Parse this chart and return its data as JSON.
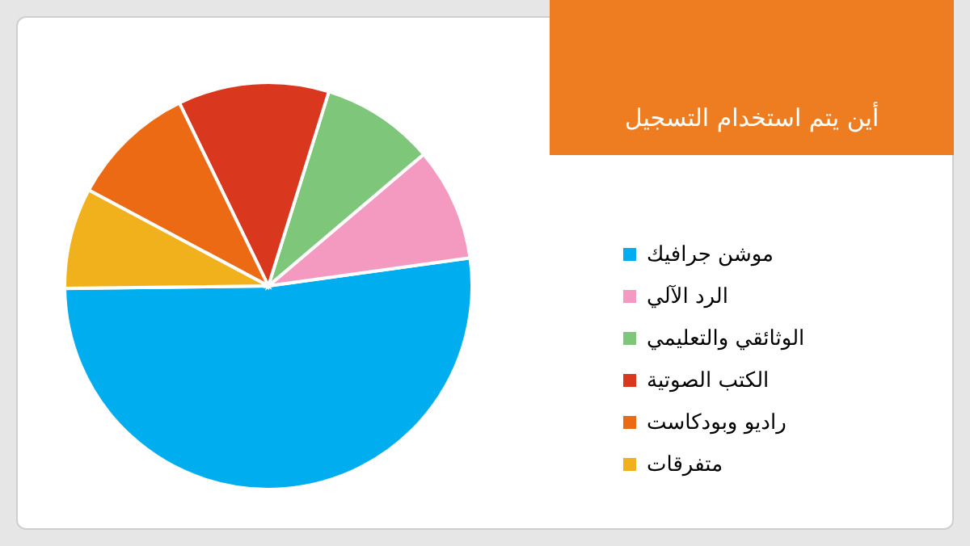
{
  "chart_data": {
    "type": "pie",
    "title": "أين يتم استخدام التسجيل",
    "categories": [
      "موشن جرافيك",
      "الرد الآلي",
      "الوثائقي والتعليمي",
      "الكتب الصوتية",
      "راديو وبودكاست",
      "متفرقات"
    ],
    "values": [
      52,
      9,
      9,
      12,
      10,
      8
    ],
    "colors": [
      "#00aeef",
      "#f49ac1",
      "#7dc67a",
      "#d9381e",
      "#eb6a13",
      "#f0b11c"
    ],
    "legend": "right"
  }
}
